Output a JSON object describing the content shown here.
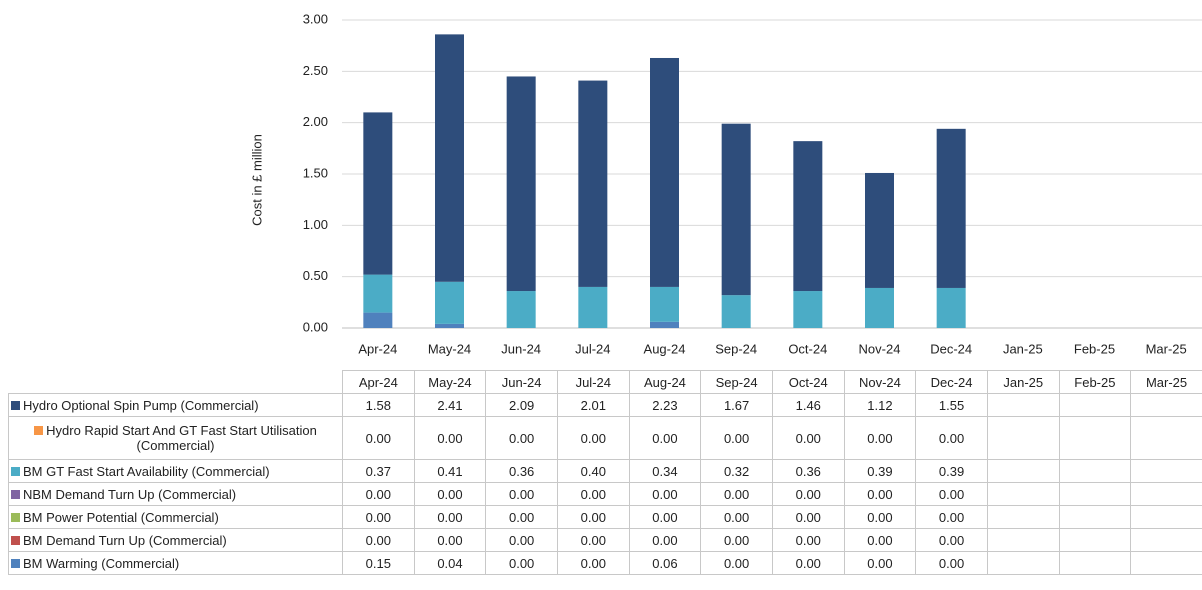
{
  "chart_data": {
    "type": "stacked_bar",
    "y_label": "Cost in £ million",
    "categories": [
      "Apr-24",
      "May-24",
      "Jun-24",
      "Jul-24",
      "Aug-24",
      "Sep-24",
      "Oct-24",
      "Nov-24",
      "Dec-24",
      "Jan-25",
      "Feb-25",
      "Mar-25"
    ],
    "ylim": [
      0,
      3
    ],
    "yticks": [
      {
        "value": 0,
        "label": "0.00"
      },
      {
        "value": 0.5,
        "label": "0.50"
      },
      {
        "value": 1,
        "label": "1.00"
      },
      {
        "value": 1.5,
        "label": "1.50"
      },
      {
        "value": 2,
        "label": "2.00"
      },
      {
        "value": 2.5,
        "label": "2.50"
      },
      {
        "value": 3,
        "label": "3.00"
      }
    ],
    "series": [
      {
        "name": "Hydro Optional Spin Pump (Commercial)",
        "color": "#2e4d7b",
        "values": [
          1.58,
          2.41,
          2.09,
          2.01,
          2.23,
          1.67,
          1.46,
          1.12,
          1.55,
          null,
          null,
          null
        ],
        "value_labels": [
          "1.58",
          "2.41",
          "2.09",
          "2.01",
          "2.23",
          "1.67",
          "1.46",
          "1.12",
          "1.55",
          null,
          null,
          null
        ]
      },
      {
        "name": "Hydro Rapid Start And GT Fast Start Utilisation (Commercial)",
        "color": "#f79646",
        "values": [
          0,
          0,
          0,
          0,
          0,
          0,
          0,
          0,
          0,
          null,
          null,
          null
        ],
        "value_labels": [
          "0.00",
          "0.00",
          "0.00",
          "0.00",
          "0.00",
          "0.00",
          "0.00",
          "0.00",
          "0.00",
          null,
          null,
          null
        ]
      },
      {
        "name": "BM GT Fast Start Availability (Commercial)",
        "color": "#4bacc6",
        "values": [
          0.37,
          0.41,
          0.36,
          0.4,
          0.34,
          0.32,
          0.36,
          0.39,
          0.39,
          null,
          null,
          null
        ],
        "value_labels": [
          "0.37",
          "0.41",
          "0.36",
          "0.40",
          "0.34",
          "0.32",
          "0.36",
          "0.39",
          "0.39",
          null,
          null,
          null
        ]
      },
      {
        "name": "NBM Demand Turn Up (Commercial)",
        "color": "#8064a2",
        "values": [
          0,
          0,
          0,
          0,
          0,
          0,
          0,
          0,
          0,
          null,
          null,
          null
        ],
        "value_labels": [
          "0.00",
          "0.00",
          "0.00",
          "0.00",
          "0.00",
          "0.00",
          "0.00",
          "0.00",
          "0.00",
          null,
          null,
          null
        ]
      },
      {
        "name": "BM Power Potential (Commercial)",
        "color": "#9bbb59",
        "values": [
          0,
          0,
          0,
          0,
          0,
          0,
          0,
          0,
          0,
          null,
          null,
          null
        ],
        "value_labels": [
          "0.00",
          "0.00",
          "0.00",
          "0.00",
          "0.00",
          "0.00",
          "0.00",
          "0.00",
          "0.00",
          null,
          null,
          null
        ]
      },
      {
        "name": "BM Demand Turn Up (Commercial)",
        "color": "#c0504d",
        "values": [
          0,
          0,
          0,
          0,
          0,
          0,
          0,
          0,
          0,
          null,
          null,
          null
        ],
        "value_labels": [
          "0.00",
          "0.00",
          "0.00",
          "0.00",
          "0.00",
          "0.00",
          "0.00",
          "0.00",
          "0.00",
          null,
          null,
          null
        ]
      },
      {
        "name": "BM Warming (Commercial)",
        "color": "#4f81bd",
        "values": [
          0.15,
          0.04,
          0,
          0,
          0.06,
          0,
          0,
          0,
          0,
          null,
          null,
          null
        ],
        "value_labels": [
          "0.15",
          "0.04",
          "0.00",
          "0.00",
          "0.06",
          "0.00",
          "0.00",
          "0.00",
          "0.00",
          null,
          null,
          null
        ]
      }
    ]
  }
}
